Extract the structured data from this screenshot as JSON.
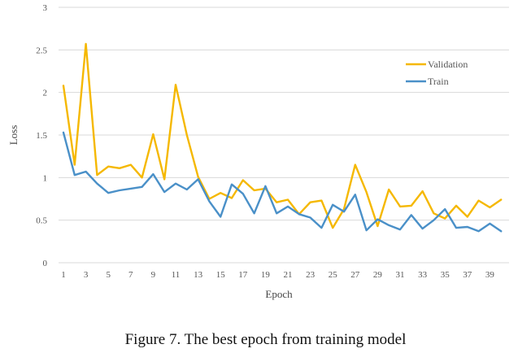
{
  "caption": "Figure 7. The best epoch from training model",
  "chart_data": {
    "type": "line",
    "xlabel": "Epoch",
    "ylabel": "Loss",
    "ylim": [
      0,
      3
    ],
    "yticks": [
      "0",
      "0.5",
      "1",
      "1.5",
      "2",
      "2.5",
      "3"
    ],
    "xticks": [
      "1",
      "3",
      "5",
      "7",
      "9",
      "11",
      "13",
      "15",
      "17",
      "19",
      "21",
      "23",
      "25",
      "27",
      "29",
      "31",
      "33",
      "35",
      "37",
      "39"
    ],
    "x": [
      1,
      2,
      3,
      4,
      5,
      6,
      7,
      8,
      9,
      10,
      11,
      12,
      13,
      14,
      15,
      16,
      17,
      18,
      19,
      20,
      21,
      22,
      23,
      24,
      25,
      26,
      27,
      28,
      29,
      30,
      31,
      32,
      33,
      34,
      35,
      36,
      37,
      38,
      39,
      40
    ],
    "grid": "horizontal",
    "legend_position": "top-right",
    "series": [
      {
        "name": "Validation",
        "color": "#f5b800",
        "values": [
          2.08,
          1.15,
          2.57,
          1.03,
          1.13,
          1.11,
          1.15,
          1.0,
          1.51,
          0.98,
          2.09,
          1.5,
          1.01,
          0.75,
          0.82,
          0.76,
          0.97,
          0.85,
          0.87,
          0.71,
          0.74,
          0.57,
          0.71,
          0.73,
          0.41,
          0.63,
          1.15,
          0.83,
          0.43,
          0.86,
          0.66,
          0.67,
          0.84,
          0.58,
          0.52,
          0.67,
          0.54,
          0.73,
          0.65,
          0.74
        ]
      },
      {
        "name": "Train",
        "color": "#4a90c8",
        "values": [
          1.53,
          1.03,
          1.07,
          0.93,
          0.82,
          0.85,
          0.87,
          0.89,
          1.04,
          0.83,
          0.93,
          0.86,
          0.98,
          0.72,
          0.54,
          0.92,
          0.81,
          0.58,
          0.9,
          0.58,
          0.66,
          0.57,
          0.53,
          0.41,
          0.68,
          0.6,
          0.8,
          0.38,
          0.51,
          0.44,
          0.39,
          0.56,
          0.4,
          0.5,
          0.63,
          0.41,
          0.42,
          0.37,
          0.46,
          0.37
        ]
      }
    ]
  }
}
